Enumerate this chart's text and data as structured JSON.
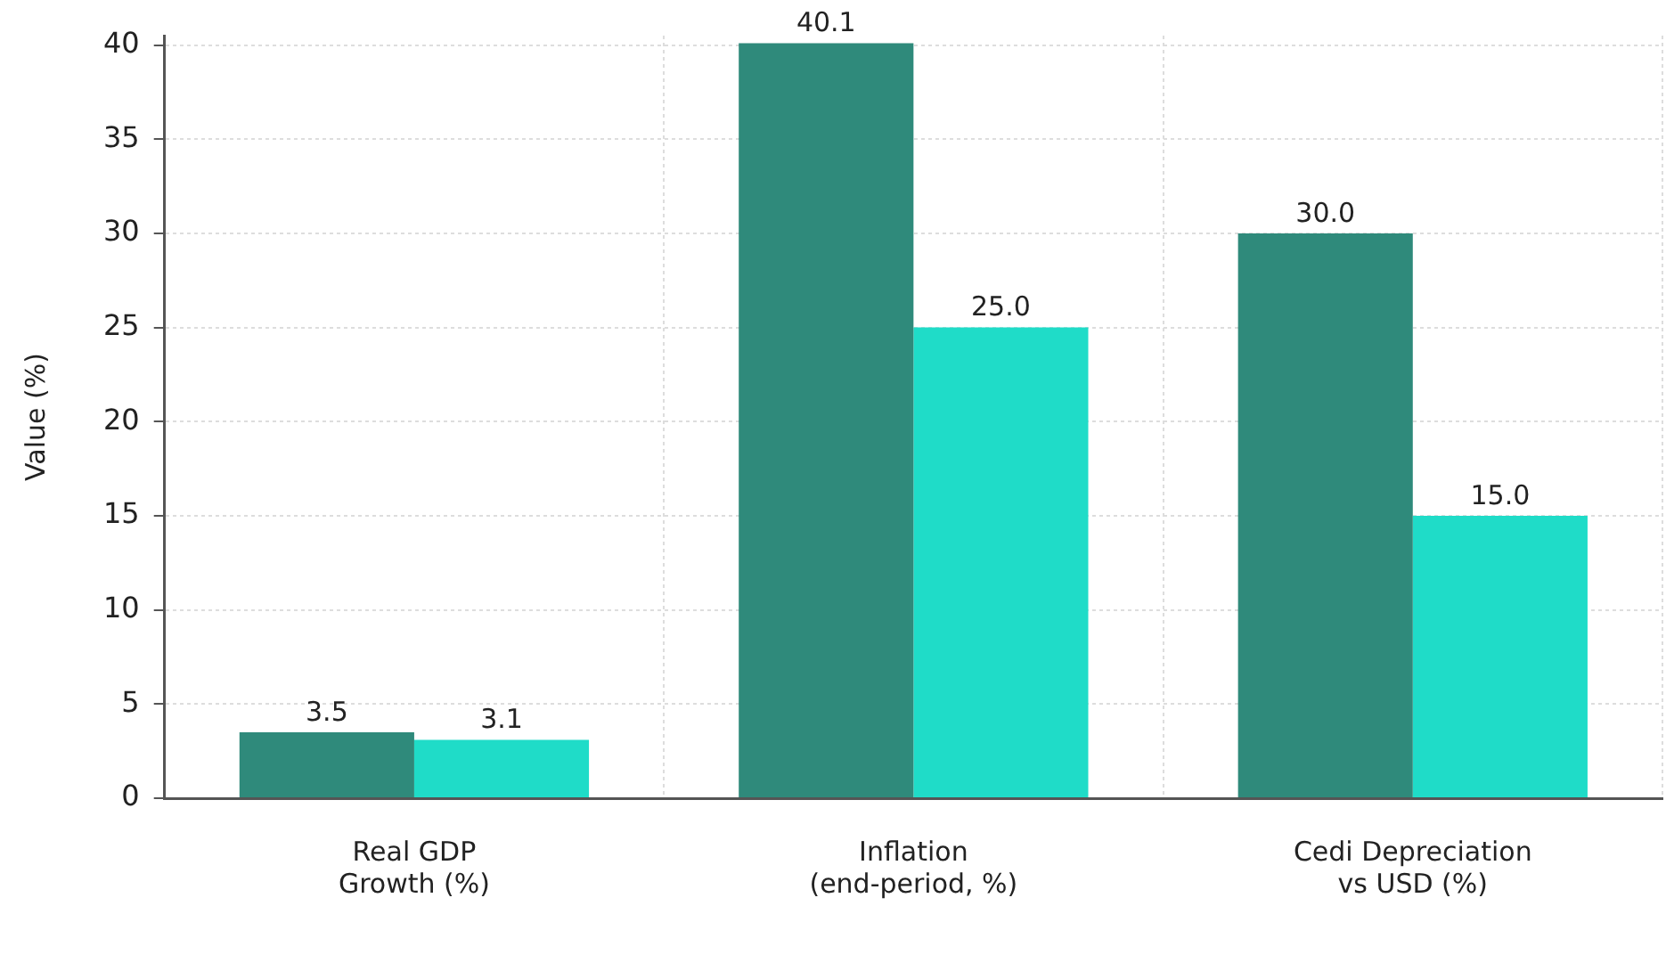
{
  "chart_data": {
    "type": "bar",
    "ylabel": "Value (%)",
    "categories": [
      "Real GDP Growth (%)",
      "Inflation (end-period, %)",
      "Cedi Depreciation vs USD (%)"
    ],
    "series": [
      {
        "color": "#2f8a7b",
        "values": [
          3.5,
          40.1,
          30.0
        ],
        "value_labels": [
          "3.5",
          "40.1",
          "30.0"
        ]
      },
      {
        "color": "#1fdcc8",
        "values": [
          3.1,
          25.0,
          15.0
        ],
        "value_labels": [
          "3.1",
          "25.0",
          "15.0"
        ]
      }
    ],
    "ylim": [
      0,
      40.5
    ],
    "yticks": [
      0,
      5,
      10,
      15,
      20,
      25,
      30,
      35,
      40
    ],
    "grid": true,
    "legend": false
  }
}
